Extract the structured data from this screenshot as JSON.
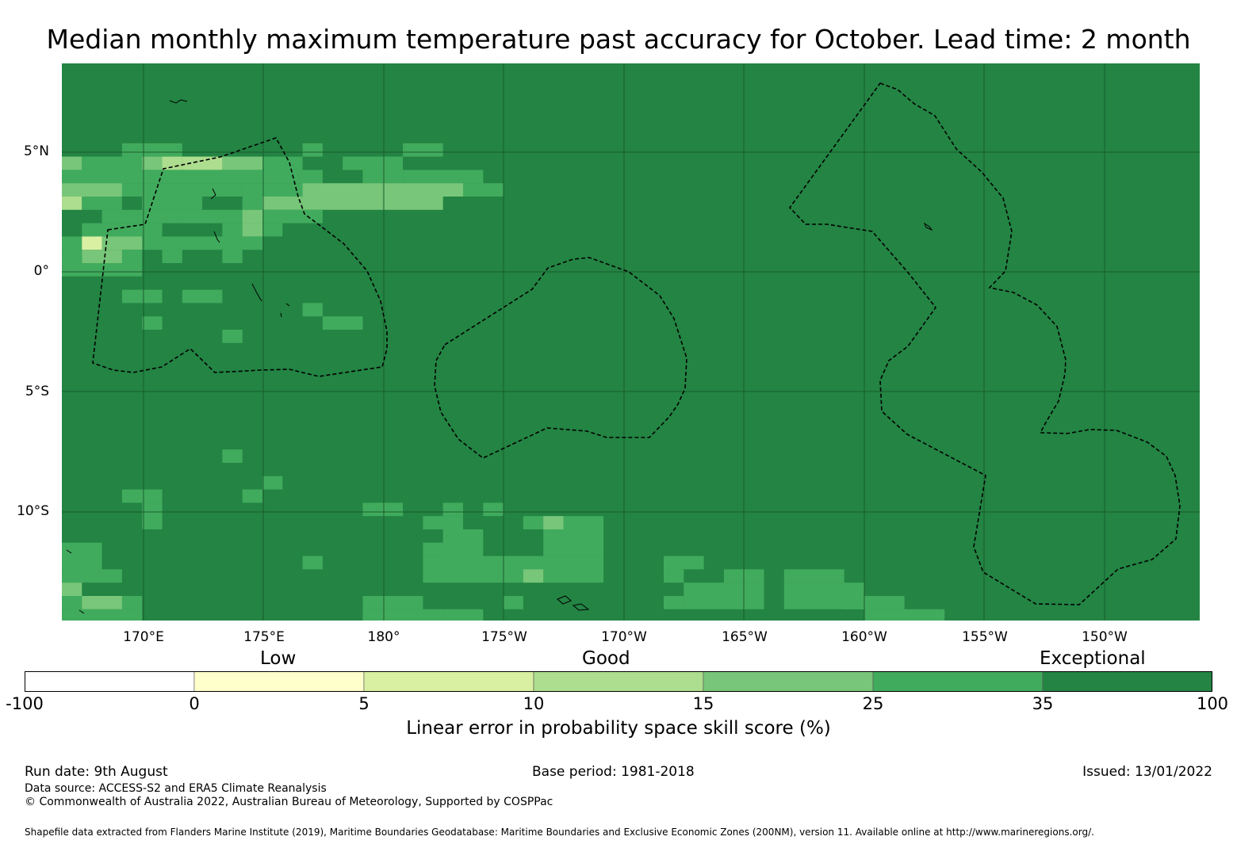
{
  "title": "Median monthly maximum temperature past accuracy for October. Lead time: 2 month",
  "map": {
    "latitude_labels": [
      "5°N",
      "0°",
      "5°S",
      "10°S"
    ],
    "longitude_labels": [
      "170°E",
      "175°E",
      "180°",
      "175°W",
      "170°W",
      "165°W",
      "160°W",
      "155°W",
      "150°W"
    ],
    "background_color": "#238443",
    "gridline_color": "#1a5c2e",
    "boundary_style": "dashed black EEZ outlines"
  },
  "legend": {
    "categories": [
      "Low",
      "Good",
      "Exceptional"
    ],
    "ticks": [
      "-100",
      "0",
      "5",
      "10",
      "15",
      "25",
      "35",
      "100"
    ],
    "bins": [
      {
        "from": -100,
        "to": 0,
        "color": "#ffffff"
      },
      {
        "from": 0,
        "to": 5,
        "color": "#ffffcc"
      },
      {
        "from": 5,
        "to": 10,
        "color": "#d9f0a3"
      },
      {
        "from": 10,
        "to": 15,
        "color": "#addd8e"
      },
      {
        "from": 15,
        "to": 25,
        "color": "#78c679"
      },
      {
        "from": 25,
        "to": 35,
        "color": "#41ab5d"
      },
      {
        "from": 35,
        "to": 100,
        "color": "#238443"
      }
    ],
    "label": "Linear error in probability space skill score (%)"
  },
  "footer": {
    "run_date": "Run date: 9th August",
    "base_period": "Base period: 1981-2018",
    "issued": "Issued: 13/01/2022",
    "data_source": "Data source: ACCESS-S2 and ERA5 Climate Reanalysis",
    "copyright": "© Commonwealth of Australia 2022, Australian Bureau of Meteorology, Supported by COSPPac",
    "shapefile_note": "Shapefile data extracted from Flanders Marine Institute (2019), Maritime Boundaries Geodatabase: Maritime Boundaries and Exclusive Economic Zones (200NM), version 11. Available online at http://www.marineregions.org/."
  }
}
